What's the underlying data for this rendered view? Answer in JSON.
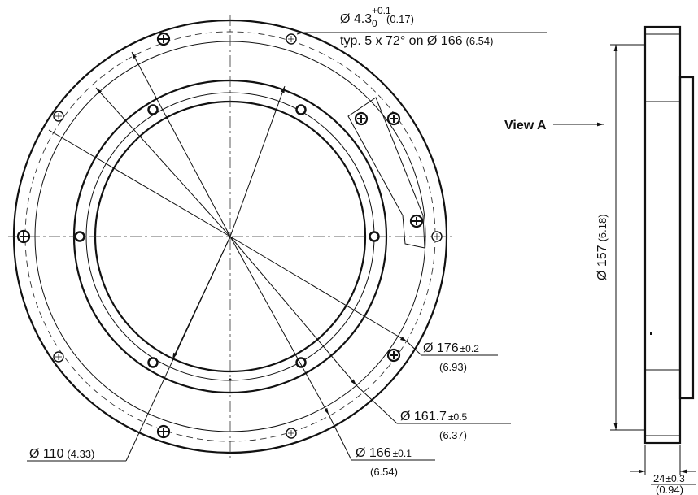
{
  "view_label": "View A",
  "dimensions": {
    "hole": {
      "text": "Ø 4.3",
      "upper": "+0.1",
      "lower": "0",
      "inch": "(0.17)",
      "note": "typ. 5 x 72° on Ø 166",
      "note_inch": "(6.54)"
    },
    "d176": {
      "text": "Ø 176",
      "tol": "±0.2",
      "inch": "(6.93)"
    },
    "d161": {
      "text": "Ø 161.7",
      "tol": "±0.5",
      "inch": "(6.37)"
    },
    "d166": {
      "text": "Ø 166",
      "tol": "±0.1",
      "inch": "(6.54)"
    },
    "d110": {
      "text": "Ø 110",
      "inch": "(4.33)"
    },
    "d157": {
      "text": "Ø 157",
      "inch": "(6.18)"
    },
    "thickness": {
      "text": "24",
      "tol": "±0.3",
      "inch": "(0.94)"
    }
  }
}
